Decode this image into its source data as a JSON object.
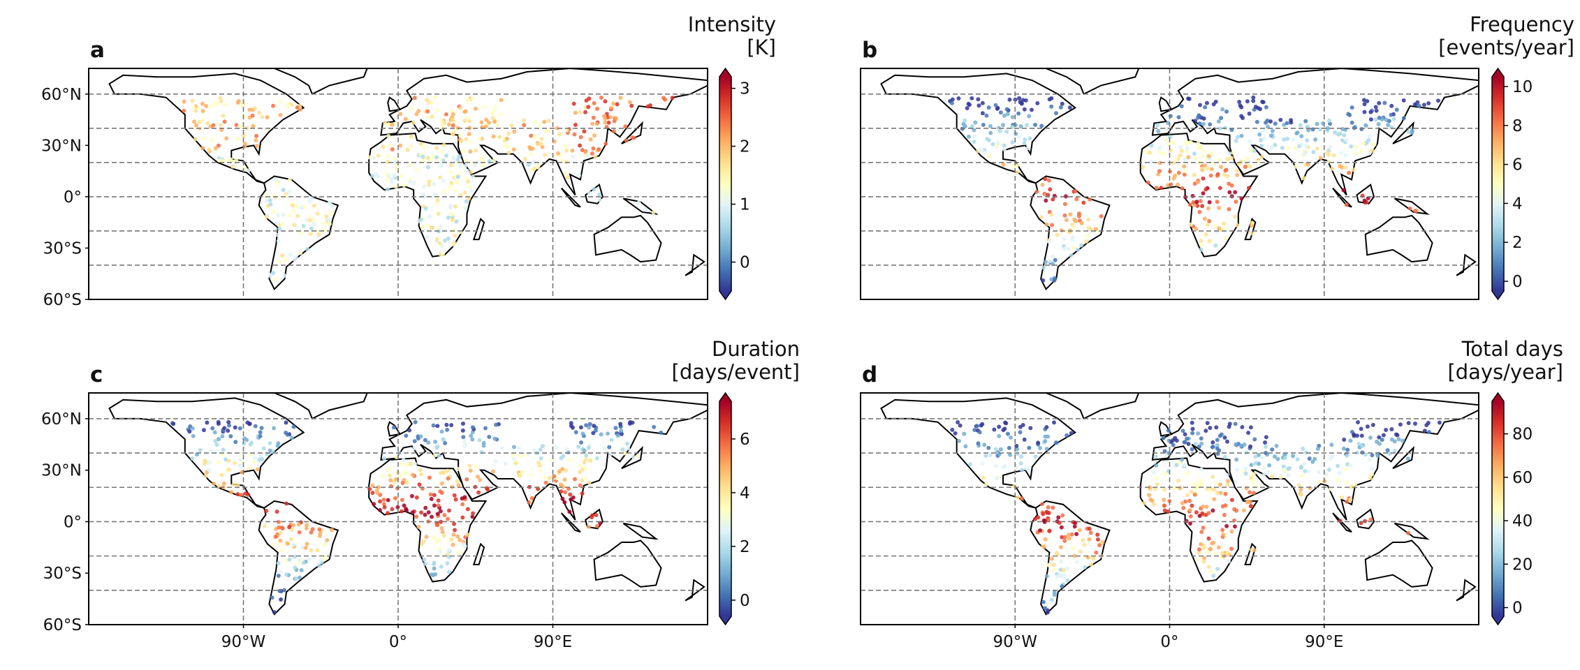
{
  "axes": {
    "xlim": [
      -180,
      180
    ],
    "ylim": [
      -60,
      75
    ],
    "xticks": [
      {
        "value": -90,
        "label": "90°W"
      },
      {
        "value": 0,
        "label": "0°"
      },
      {
        "value": 90,
        "label": "90°E"
      }
    ],
    "yticks": [
      {
        "value": 60,
        "label": "60°N"
      },
      {
        "value": 30,
        "label": "30°N"
      },
      {
        "value": 0,
        "label": "0°"
      },
      {
        "value": -30,
        "label": "30°S"
      },
      {
        "value": -60,
        "label": "60°S"
      }
    ],
    "grid_lat": [
      60,
      40,
      20,
      0,
      -20,
      -40
    ],
    "grid_lon": [
      -90,
      0,
      90
    ]
  },
  "panels": [
    {
      "label": "a",
      "title": [
        "Intensity",
        "[K]"
      ],
      "cbar": {
        "lim": [
          -0.5,
          3.2
        ],
        "ticks": [
          0,
          1,
          2,
          3
        ]
      }
    },
    {
      "label": "b",
      "title": [
        "Frequency",
        "[events/year]"
      ],
      "cbar": {
        "lim": [
          -0.5,
          10.5
        ],
        "ticks": [
          0,
          2,
          4,
          6,
          8,
          10
        ]
      }
    },
    {
      "label": "c",
      "title": [
        "Duration",
        "[days/event]"
      ],
      "cbar": {
        "lim": [
          -0.6,
          7.4
        ],
        "ticks": [
          0,
          2,
          4,
          6
        ]
      }
    },
    {
      "label": "d",
      "title": [
        "Total days",
        "[days/year]"
      ],
      "cbar": {
        "lim": [
          -4,
          95
        ],
        "ticks": [
          0,
          20,
          40,
          60,
          80
        ]
      }
    }
  ]
}
